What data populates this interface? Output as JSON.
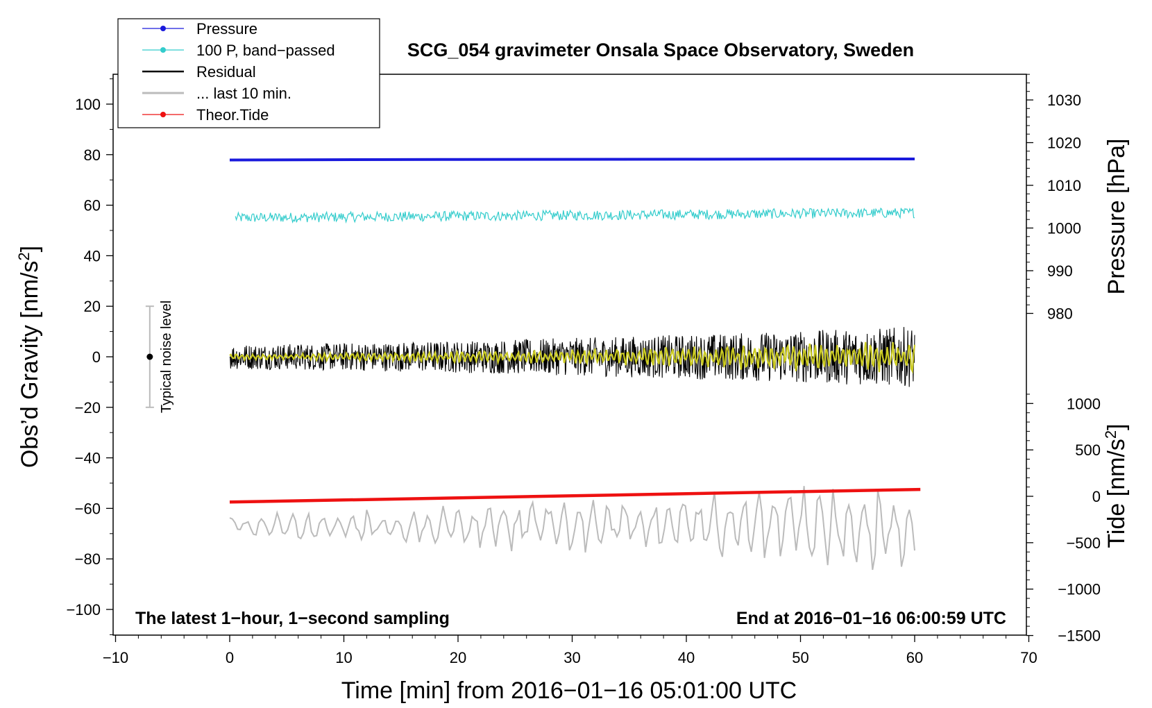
{
  "chart_data": {
    "type": "line",
    "title": "SCG_054 gravimeter Onsala Space Observatory, Sweden",
    "xlabel": "Time [min] from 2016−01−16 05:01:00 UTC",
    "ylabel_main": "Obs’d Gravity [nm/s",
    "ylabel_main_sup": "2",
    "ylabel_main_end": "]",
    "ylabel_pressure": "Pressure [hPa]",
    "ylabel_tide": "Tide [nm/s",
    "ylabel_tide_sup": "2",
    "ylabel_tide_end": "]",
    "xlim": [
      -10,
      70
    ],
    "ylim": [
      -110,
      112
    ],
    "x_ticks": [
      "−10",
      "0",
      "10",
      "20",
      "30",
      "40",
      "50",
      "60",
      "70"
    ],
    "y_ticks": [
      "100",
      "80",
      "60",
      "40",
      "20",
      "0",
      "−20",
      "−40",
      "−60",
      "−80",
      "−100"
    ],
    "pressure_ticks": [
      "1030",
      "1020",
      "1010",
      "1000",
      "990",
      "980"
    ],
    "tide_ticks": [
      "1000",
      "500",
      "0",
      "−500",
      "−1000",
      "−1500"
    ],
    "annotation_left": "The latest 1−hour, 1−second sampling",
    "annotation_right": "End at 2016−01−16 06:00:59 UTC",
    "noise_label": "Typical noise level",
    "noise_bar": {
      "x": -7,
      "center": 0,
      "half_range": 20
    },
    "legend": [
      {
        "label": "Pressure",
        "color": "#1a1adc",
        "marker": true
      },
      {
        "label": "100 P, band−passed",
        "color": "#33cccc",
        "marker": true
      },
      {
        "label": "Residual",
        "color": "#000000",
        "marker": false
      },
      {
        "label": "... last 10 min.",
        "color": "#bbbbbb",
        "marker": false
      },
      {
        "label": "Theor.Tide",
        "color": "#ee1111",
        "marker": true
      }
    ],
    "series": [
      {
        "name": "Pressure",
        "color": "#1a1adc",
        "x": [
          0,
          20,
          40,
          60
        ],
        "y": [
          77.9,
          78.1,
          78.2,
          78.3
        ]
      },
      {
        "name": "100 P, band−passed",
        "color": "#33cccc",
        "x_range": [
          0.5,
          60
        ],
        "baseline": [
          55,
          57
        ],
        "amplitude": 2
      },
      {
        "name": "Residual",
        "color": "#000000",
        "x_range": [
          0,
          60
        ],
        "baseline": 0,
        "amplitude": [
          5,
          12
        ]
      },
      {
        "name": "Smoothed residual",
        "color": "#cccc22",
        "x_range": [
          0,
          60
        ],
        "baseline": 0,
        "amplitude": [
          1,
          6
        ]
      },
      {
        "name": "... last 10 min.",
        "color": "#bbbbbb",
        "x_range": [
          0,
          60
        ],
        "baseline": -67,
        "amplitude": [
          5,
          18
        ]
      },
      {
        "name": "Theor.Tide",
        "color": "#ee1111",
        "x": [
          0,
          60.5
        ],
        "y": [
          -57.5,
          -52.5
        ]
      }
    ]
  }
}
